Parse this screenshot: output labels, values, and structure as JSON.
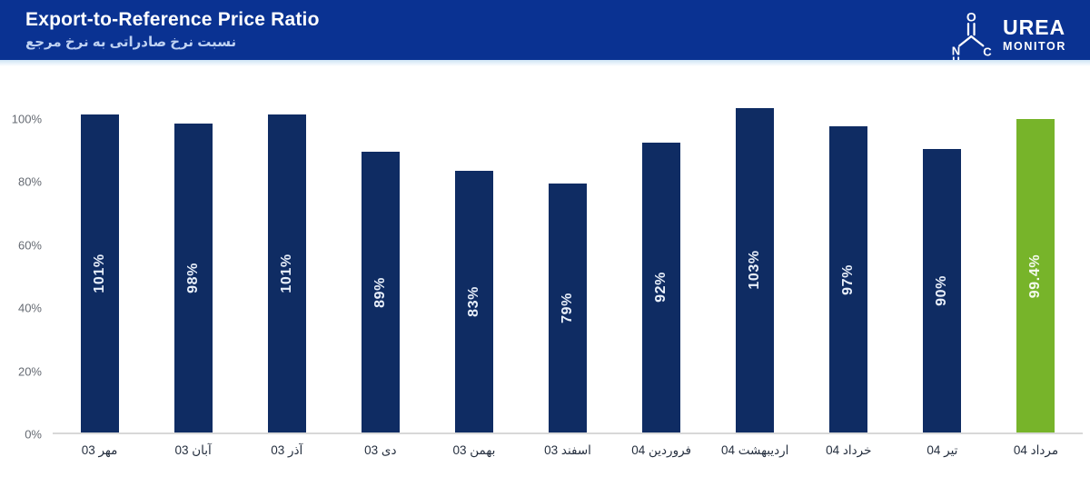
{
  "header": {
    "title": "Export-to-Reference Price Ratio",
    "subtitle_fa": "نسبت نرخ صادراتی به نرخ مرجع",
    "logo": {
      "brand_top": "UREA",
      "brand_bottom": "MONITOR",
      "atom_o": "O",
      "atom_n": "N",
      "atom_h": "H",
      "atom_c": "C"
    }
  },
  "colors": {
    "header_bg": "#0a3292",
    "bar": "#0f2c63",
    "bar_highlight": "#77b42a",
    "axis_line": "#d8d8d8",
    "tick_text": "#666b73",
    "category_text": "#252f3f",
    "bar_label_text": "#e9f0fb",
    "title_text": "#ffffff",
    "subtitle_text": "#bfd2f2"
  },
  "chart_data": {
    "type": "bar",
    "bar_orientation": "vertical",
    "title": "Export-to-Reference Price Ratio",
    "title_fa": "نسبت نرخ صادراتی به نرخ مرجع",
    "categories": [
      "مهر 03",
      "آبان 03",
      "آذر 03",
      "دی 03",
      "بهمن 03",
      "اسفند 03",
      "فروردین 04",
      "اردیبهشت 04",
      "خرداد 04",
      "تیر 04",
      "مرداد 04"
    ],
    "values": [
      101,
      98,
      101,
      89,
      83,
      79,
      92,
      103,
      97,
      90,
      99.4
    ],
    "value_labels": [
      "101%",
      "98%",
      "101%",
      "89%",
      "83%",
      "79%",
      "92%",
      "103%",
      "97%",
      "90%",
      "99.4%"
    ],
    "highlight_index": 10,
    "y_ticks": [
      0,
      20,
      40,
      60,
      80,
      100
    ],
    "y_tick_labels": [
      "0%",
      "20%",
      "40%",
      "60%",
      "80%",
      "100%"
    ],
    "ylim": [
      0,
      105
    ],
    "xlabel": "",
    "ylabel": "",
    "grid": false,
    "legend": false
  }
}
